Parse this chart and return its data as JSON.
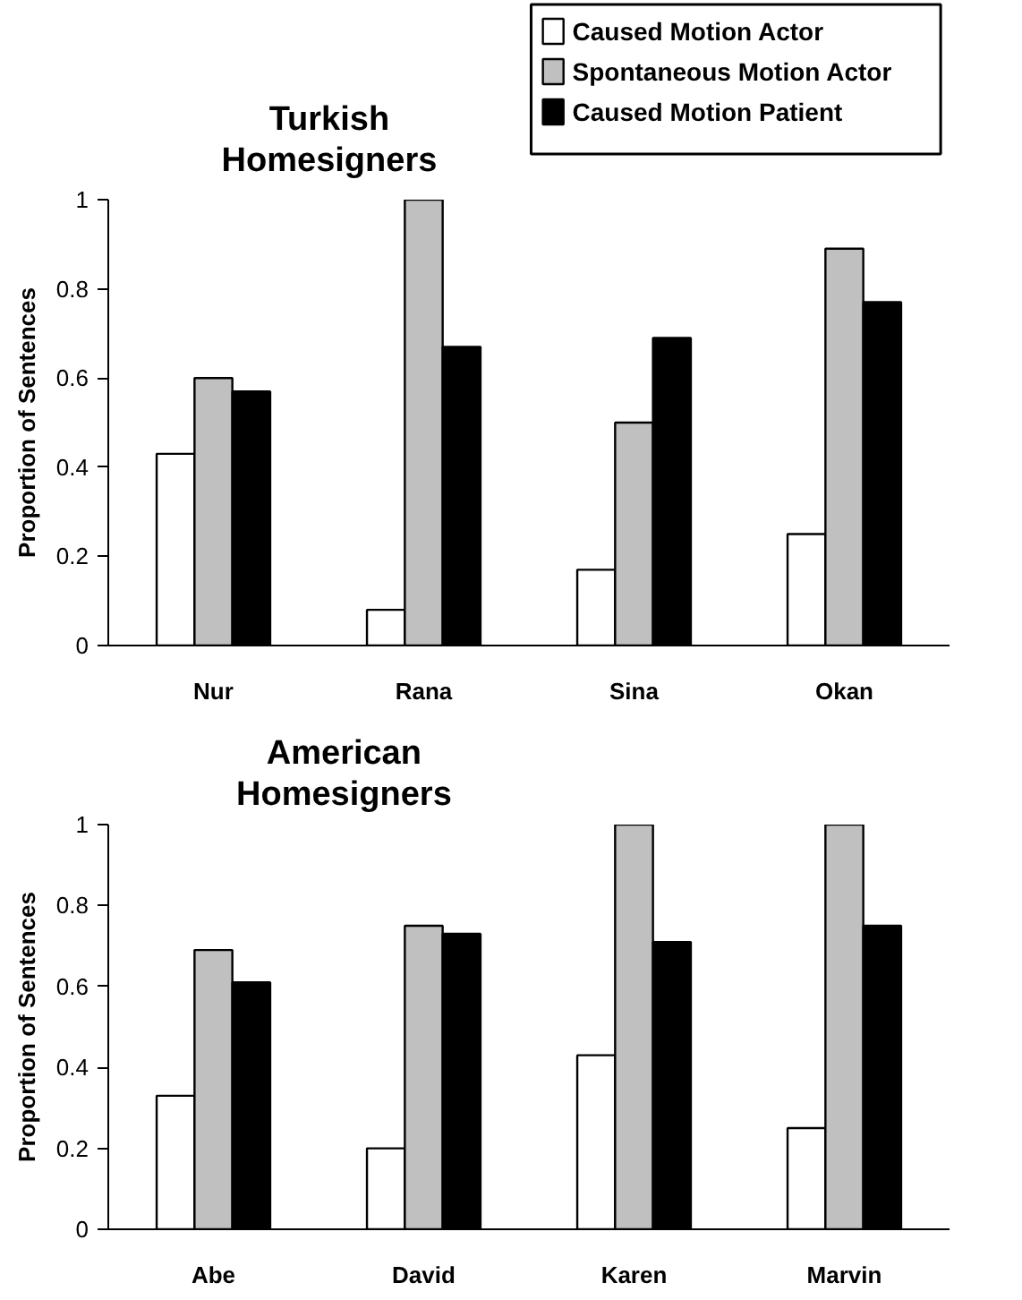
{
  "chart_data": [
    {
      "type": "bar",
      "title": "Turkish Homesigners",
      "ylabel": "Proportion of Sentences",
      "categories": [
        "Nur",
        "Rana",
        "Sina",
        "Okan"
      ],
      "ylim": [
        0,
        1
      ],
      "yticks": [
        0,
        0.2,
        0.4,
        0.6,
        0.8,
        1
      ],
      "grid": false,
      "legend": "top right",
      "series": [
        {
          "name": "Caused Motion Actor",
          "color": "#ffffff",
          "values": [
            0.43,
            0.08,
            0.17,
            0.25
          ]
        },
        {
          "name": "Spontaneous Motion Actor",
          "color": "#c0c0c0",
          "values": [
            0.6,
            1.0,
            0.5,
            0.89
          ]
        },
        {
          "name": "Caused Motion Patient",
          "color": "#000000",
          "values": [
            0.57,
            0.67,
            0.69,
            0.77
          ]
        }
      ]
    },
    {
      "type": "bar",
      "title": "American Homesigners",
      "ylabel": "Proportion of Sentences",
      "categories": [
        "Abe",
        "David",
        "Karen",
        "Marvin"
      ],
      "ylim": [
        0,
        1
      ],
      "yticks": [
        0,
        0.2,
        0.4,
        0.6,
        0.8,
        1
      ],
      "grid": false,
      "series": [
        {
          "color": "#ffffff",
          "values": [
            0.33,
            0.2,
            0.43,
            0.25
          ]
        },
        {
          "color": "#c0c0c0",
          "values": [
            0.69,
            0.75,
            1.0,
            1.0
          ]
        },
        {
          "color": "#000000",
          "values": [
            0.61,
            0.73,
            0.71,
            0.75
          ]
        }
      ]
    }
  ]
}
